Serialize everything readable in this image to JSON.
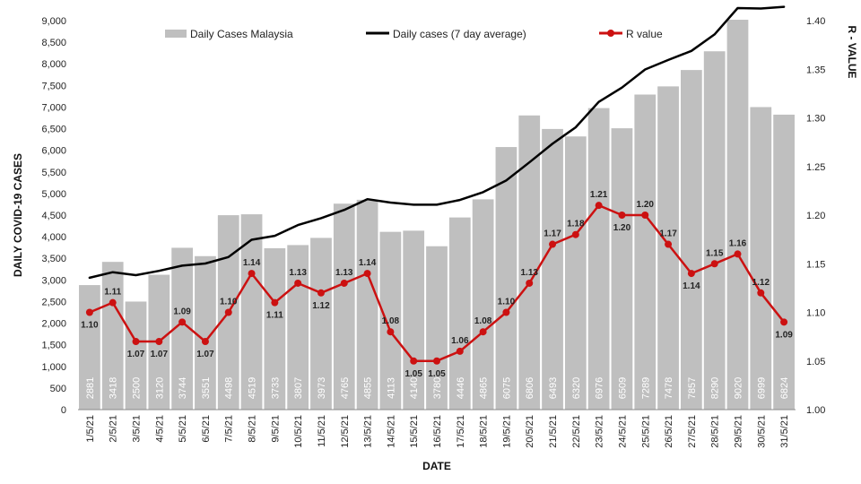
{
  "chart_data": {
    "type": "bar",
    "categories": [
      "1/5/21",
      "2/5/21",
      "3/5/21",
      "4/5/21",
      "5/5/21",
      "6/5/21",
      "7/5/21",
      "8/5/21",
      "9/5/21",
      "10/5/21",
      "11/5/21",
      "12/5/21",
      "13/5/21",
      "14/5/21",
      "15/5/21",
      "16/5/21",
      "17/5/21",
      "18/5/21",
      "19/5/21",
      "20/5/21",
      "21/5/21",
      "22/5/21",
      "23/5/21",
      "24/5/21",
      "25/5/21",
      "26/5/21",
      "27/5/21",
      "28/5/21",
      "29/5/21",
      "30/5/21",
      "31/5/21"
    ],
    "series": [
      {
        "name": "Daily Cases Malaysia",
        "type": "bar",
        "axis": "left",
        "color": "#bfbfbf",
        "values": [
          2881,
          3418,
          2500,
          3120,
          3744,
          3551,
          4498,
          4519,
          3733,
          3807,
          3973,
          4765,
          4855,
          4113,
          4140,
          3780,
          4446,
          4865,
          6075,
          6806,
          6493,
          6320,
          6976,
          6509,
          7289,
          7478,
          7857,
          8290,
          9020,
          6999,
          6824
        ]
      },
      {
        "name": "Daily cases (7 day average)",
        "type": "line",
        "axis": "left",
        "color": "#000000",
        "values": [
          3050,
          3180,
          3110,
          3210,
          3330,
          3380,
          3530,
          3930,
          4020,
          4270,
          4430,
          4620,
          4870,
          4790,
          4740,
          4740,
          4850,
          5030,
          5300,
          5720,
          6150,
          6530,
          7120,
          7450,
          7870,
          8090,
          8300,
          8680,
          9290,
          9280,
          9320
        ]
      },
      {
        "name": "R value",
        "type": "line",
        "axis": "right",
        "color": "#cc1111",
        "values": [
          1.1,
          1.11,
          1.07,
          1.07,
          1.09,
          1.07,
          1.1,
          1.14,
          1.11,
          1.13,
          1.12,
          1.13,
          1.14,
          1.08,
          1.05,
          1.05,
          1.06,
          1.08,
          1.1,
          1.13,
          1.17,
          1.18,
          1.21,
          1.2,
          1.2,
          1.17,
          1.14,
          1.15,
          1.16,
          1.12,
          1.09
        ],
        "labels": [
          "1.10",
          "1.11",
          "1.07",
          "1.07",
          "1.09",
          "1.07",
          "1.10",
          "1.14",
          "1.11",
          "1.13",
          "1.12",
          "1.13",
          "1.14",
          "1.08",
          "1.05",
          "1.05",
          "1.06",
          "1.08",
          "1.10",
          "1.13",
          "1.17",
          "1.18",
          "1.21",
          "1.20",
          "1.20",
          "1.17",
          "1.14",
          "1.15",
          "1.16",
          "1.12",
          "1.09"
        ]
      }
    ],
    "xlabel": "DATE",
    "ylabel": "DAILY COVID-19 CASES",
    "y2label": "R - VALUE",
    "ylim": [
      0,
      9000
    ],
    "yticks": [
      "0",
      "500",
      "1,000",
      "1,500",
      "2,000",
      "2,500",
      "3,000",
      "3,500",
      "4,000",
      "4,500",
      "5,000",
      "5,500",
      "6,000",
      "6,500",
      "7,000",
      "7,500",
      "8,000",
      "8,500",
      "9,000"
    ],
    "y2lim": [
      1.0,
      1.4
    ],
    "y2ticks": [
      "1.00",
      "1.05",
      "1.10",
      "1.15",
      "1.20",
      "1.25",
      "1.30",
      "1.35",
      "1.40"
    ],
    "legend_position": "top",
    "grid": false
  }
}
